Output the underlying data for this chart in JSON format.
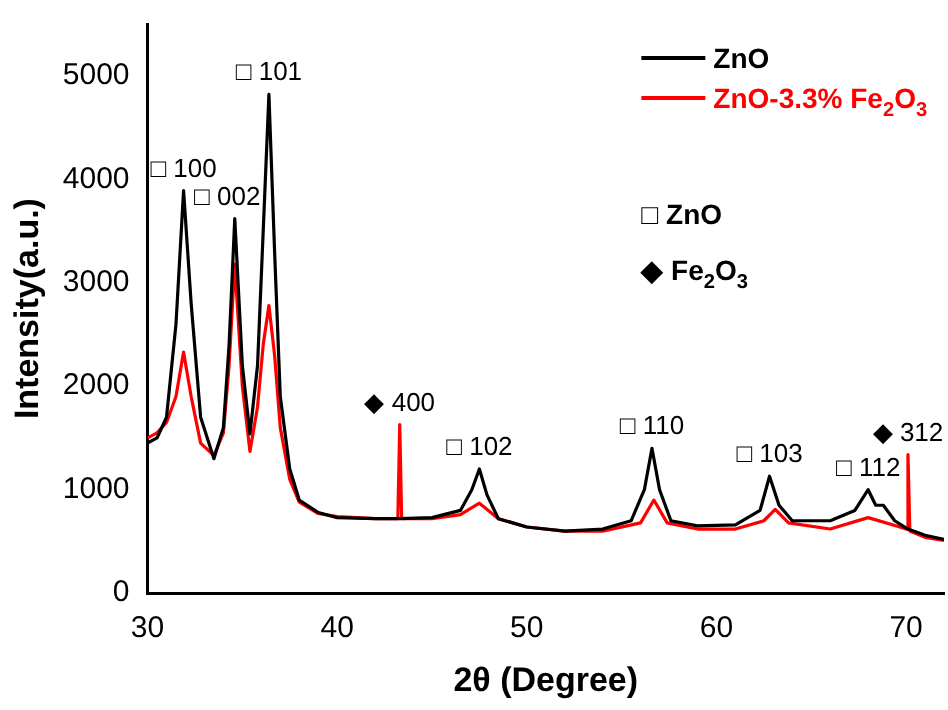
{
  "chart_data": {
    "type": "line",
    "xlabel": "2θ (Degree)",
    "ylabel": "Intensity(a.u.)",
    "xlim": [
      30,
      72
    ],
    "xticks": [
      30,
      40,
      50,
      60,
      70
    ],
    "ylim": [
      0,
      5500
    ],
    "yticks": [
      0,
      1000,
      2000,
      3000,
      4000,
      5000
    ],
    "grid": false,
    "legend": "top right",
    "marker": "none",
    "line_style": "solid",
    "series": [
      {
        "name": "ZnO",
        "color": "#000000",
        "x": [
          30,
          30.5,
          31,
          31.5,
          31.9,
          32.3,
          32.8,
          33.5,
          34,
          34.3,
          34.6,
          35,
          35.4,
          35.8,
          36.1,
          36.4,
          36.7,
          37,
          37.5,
          38,
          39,
          40,
          42,
          43.3,
          45,
          46.5,
          47.1,
          47.5,
          47.9,
          48.5,
          50,
          52,
          54,
          55.5,
          56.2,
          56.6,
          57,
          57.6,
          59,
          61,
          62.3,
          62.8,
          63.3,
          64,
          66,
          67.3,
          68,
          68.4,
          68.8,
          69.4,
          70.1,
          71,
          72
        ],
        "values": [
          1450,
          1500,
          1700,
          2600,
          3890,
          2800,
          1700,
          1300,
          1600,
          2400,
          3620,
          2200,
          1540,
          2200,
          3500,
          4820,
          3300,
          1900,
          1200,
          900,
          780,
          730,
          720,
          720,
          730,
          800,
          1000,
          1200,
          950,
          720,
          640,
          600,
          620,
          700,
          1000,
          1400,
          1000,
          700,
          650,
          660,
          800,
          1130,
          850,
          700,
          700,
          800,
          1000,
          850,
          850,
          700,
          620,
          560,
          520
        ]
      },
      {
        "name": "ZnO-3.3% Fe$_{2}$O$_{3}$",
        "color": "#ff0000",
        "x": [
          30,
          30.5,
          31,
          31.5,
          31.9,
          32.3,
          32.8,
          33.5,
          34,
          34.3,
          34.6,
          35,
          35.4,
          35.8,
          36.1,
          36.4,
          36.7,
          37,
          37.5,
          38,
          39,
          40,
          42,
          43.2,
          43.3,
          43.4,
          45,
          46.5,
          47.5,
          48.5,
          50,
          52,
          54,
          56,
          56.7,
          57.4,
          59,
          61,
          62.5,
          63.1,
          63.8,
          66,
          68,
          69.5,
          70,
          70.1,
          70.2,
          71,
          72
        ],
        "values": [
          1500,
          1550,
          1650,
          1900,
          2330,
          1900,
          1450,
          1330,
          1550,
          2200,
          3180,
          2000,
          1370,
          1800,
          2400,
          2780,
          2300,
          1600,
          1100,
          880,
          770,
          740,
          720,
          720,
          1630,
          720,
          720,
          760,
          870,
          720,
          640,
          600,
          600,
          680,
          900,
          680,
          620,
          620,
          700,
          810,
          680,
          620,
          730,
          650,
          620,
          1340,
          600,
          540,
          510
        ]
      }
    ],
    "annotations": [
      {
        "text": "□ 100",
        "x": 31.9,
        "y": 3890
      },
      {
        "text": "□ 002",
        "x": 34.2,
        "y": 3620
      },
      {
        "text": "□ 101",
        "x": 36.4,
        "y": 4820
      },
      {
        "text": "◆ 400",
        "x": 43.3,
        "y": 1630
      },
      {
        "text": "□ 102",
        "x": 47.5,
        "y": 1200
      },
      {
        "text": "□ 110",
        "x": 56.6,
        "y": 1400
      },
      {
        "text": "□ 103",
        "x": 62.8,
        "y": 1130
      },
      {
        "text": "□ 112",
        "x": 68,
        "y": 1000
      },
      {
        "text": "◆ 312",
        "x": 70.1,
        "y": 1340
      },
      "□ ZnO",
      "◆ Fe$_{2}$O$_{3}$"
    ]
  }
}
